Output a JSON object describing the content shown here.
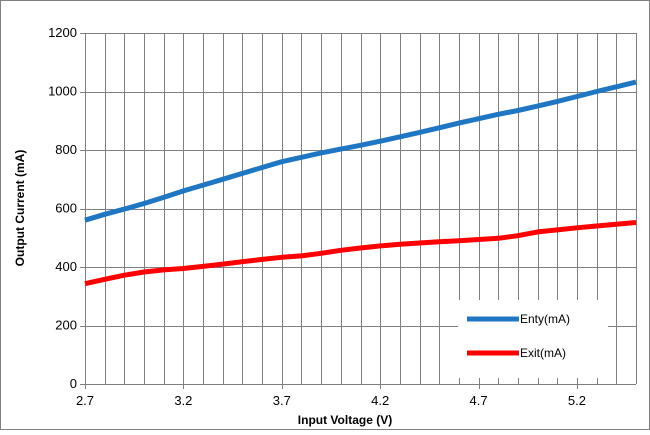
{
  "chart_data": {
    "type": "line",
    "xlabel": "Input Voltage (V)",
    "ylabel": "Output Current (mA)",
    "xlim": [
      2.7,
      5.5
    ],
    "ylim": [
      0,
      1200
    ],
    "x_ticks": [
      "2.7",
      "3.2",
      "3.7",
      "4.2",
      "4.7",
      "5.2"
    ],
    "y_ticks": [
      "0",
      "200",
      "400",
      "600",
      "800",
      "1000",
      "1200"
    ],
    "grid": true,
    "legend_position": "bottom-right",
    "series": [
      {
        "name": "Enty(mA)",
        "color": "#1f77c4",
        "x": [
          2.7,
          2.8,
          2.9,
          3.0,
          3.1,
          3.2,
          3.3,
          3.4,
          3.5,
          3.6,
          3.7,
          3.8,
          3.9,
          4.0,
          4.1,
          4.2,
          4.3,
          4.4,
          4.5,
          4.6,
          4.7,
          4.8,
          4.9,
          5.0,
          5.1,
          5.2,
          5.3,
          5.4,
          5.5
        ],
        "values": [
          560,
          580,
          598,
          617,
          638,
          660,
          680,
          700,
          720,
          740,
          760,
          775,
          790,
          803,
          816,
          830,
          845,
          860,
          876,
          892,
          907,
          922,
          935,
          950,
          966,
          983,
          1000,
          1016,
          1032
        ]
      },
      {
        "name": "Exit(mA)",
        "color": "#ff0000",
        "x": [
          2.7,
          2.8,
          2.9,
          3.0,
          3.1,
          3.2,
          3.3,
          3.4,
          3.5,
          3.6,
          3.7,
          3.8,
          3.9,
          4.0,
          4.1,
          4.2,
          4.3,
          4.4,
          4.5,
          4.6,
          4.7,
          4.8,
          4.9,
          5.0,
          5.1,
          5.2,
          5.3,
          5.4,
          5.5
        ],
        "values": [
          343,
          358,
          372,
          383,
          390,
          395,
          402,
          410,
          418,
          426,
          433,
          438,
          447,
          457,
          465,
          472,
          478,
          482,
          486,
          490,
          494,
          498,
          507,
          520,
          527,
          534,
          540,
          546,
          552
        ]
      }
    ]
  }
}
